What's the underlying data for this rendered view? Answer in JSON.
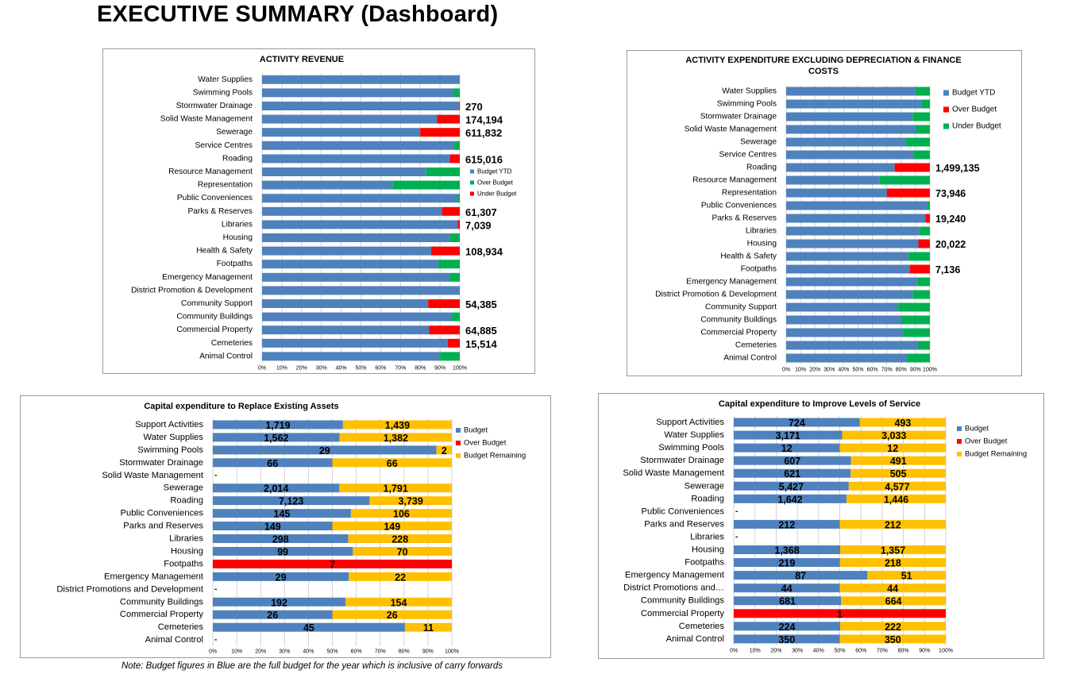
{
  "page": {
    "title": "EXECUTIVE SUMMARY (Dashboard)",
    "note": "Note: Budget figures in Blue are the full budget for the year which is inclusive of carry forwards"
  },
  "colors": {
    "blue": "#4f81bd",
    "green": "#00b050",
    "red": "#ff0000",
    "yellow": "#ffc000",
    "grid": "#c8c8c8"
  },
  "chart_data": [
    {
      "id": "activity-revenue",
      "type": "bar",
      "stacked": "percent",
      "orientation": "horizontal",
      "title": "ACTIVITY REVENUE",
      "legend": [
        "Budget YTD",
        "Over Budget",
        "Under Budget"
      ],
      "legend_position": "right",
      "xlim": [
        0,
        100
      ],
      "x_ticks": [
        "0%",
        "10%",
        "20%",
        "30%",
        "40%",
        "50%",
        "60%",
        "70%",
        "80%",
        "90%",
        "100%"
      ],
      "grid": true,
      "categories": [
        "Water Supplies",
        "Swimming Pools",
        "Stormwater Drainage",
        "Solid Waste Management",
        "Sewerage",
        "Service Centres",
        "Roading",
        "Resource Management",
        "Representation",
        "Public Conveniences",
        "Parks & Reserves",
        "Libraries",
        "Housing",
        "Health & Safety",
        "Footpaths",
        "Emergency Management",
        "District Promotion & Development",
        "Community Support",
        "Community Buildings",
        "Commercial Property",
        "Cemeteries",
        "Animal Control"
      ],
      "series": [
        {
          "name": "Budget YTD",
          "color": "blue",
          "values": [
            100,
            97,
            99.5,
            88.5,
            80,
            97.2,
            95,
            83,
            66,
            99,
            91,
            99,
            95,
            85.5,
            89,
            95,
            100,
            84,
            96,
            84.5,
            94,
            90
          ]
        },
        {
          "name": "Over Budget",
          "color": "green",
          "values": [
            0,
            3,
            0,
            0,
            0,
            2.8,
            0,
            17,
            34,
            1,
            0,
            0,
            5,
            0,
            11,
            5,
            0,
            0,
            4,
            0,
            0,
            10
          ]
        },
        {
          "name": "Under Budget",
          "color": "red",
          "values": [
            0,
            0,
            0.5,
            11.5,
            20,
            0,
            5,
            0,
            0,
            0,
            9,
            1,
            0,
            14.5,
            0,
            0,
            0,
            16,
            0,
            15.5,
            6,
            0
          ]
        }
      ],
      "value_labels": [
        "",
        "",
        "270",
        "174,194",
        "611,832",
        "",
        "615,016",
        "",
        "",
        "",
        "61,307",
        "7,039",
        "",
        "108,934",
        "",
        "",
        "",
        "54,385",
        "",
        "64,885",
        "15,514",
        ""
      ]
    },
    {
      "id": "activity-expenditure",
      "type": "bar",
      "stacked": "percent",
      "orientation": "horizontal",
      "title": "ACTIVITY EXPENDITURE EXCLUDING DEPRECIATION & FINANCE COSTS",
      "legend": [
        "Budget YTD",
        "Over Budget",
        "Under Budget"
      ],
      "legend_position": "right",
      "xlim": [
        0,
        100
      ],
      "x_ticks": [
        "0%",
        "10%",
        "20%",
        "30%",
        "40%",
        "50%",
        "60%",
        "70%",
        "80%",
        "90%",
        "100%"
      ],
      "grid": true,
      "categories": [
        "Water Supplies",
        "Swimming Pools",
        "Stormwater Drainage",
        "Solid Waste Management",
        "Sewerage",
        "Service Centres",
        "Roading",
        "Resource Management",
        "Representation",
        "Public Conveniences",
        "Parks & Reserves",
        "Libraries",
        "Housing",
        "Health & Safety",
        "Footpaths",
        "Emergency Management",
        "District Promotion & Development",
        "Community Support",
        "Community Buildings",
        "Commercial Property",
        "Cemeteries",
        "Animal Control"
      ],
      "series": [
        {
          "name": "Budget YTD",
          "color": "blue",
          "values": [
            90,
            94,
            88,
            90,
            83,
            89,
            75.5,
            65,
            70,
            98,
            97,
            93,
            92,
            85,
            86,
            91,
            88,
            78,
            80,
            81,
            92,
            84
          ]
        },
        {
          "name": "Over Budget",
          "color": "red",
          "values": [
            0,
            0,
            0,
            0,
            0,
            0,
            24.5,
            0,
            30,
            0,
            3,
            0,
            8,
            0,
            14,
            0,
            0,
            0,
            0,
            0,
            0,
            0
          ]
        },
        {
          "name": "Under Budget",
          "color": "green",
          "values": [
            10,
            6,
            12,
            10,
            17,
            11,
            0,
            35,
            0,
            2,
            0,
            7,
            0,
            15,
            0,
            9,
            12,
            22,
            20,
            19,
            8,
            16
          ]
        }
      ],
      "value_labels": [
        "",
        "",
        "",
        "",
        "",
        "",
        "1,499,135",
        "",
        "73,946",
        "",
        "19,240",
        "",
        "20,022",
        "",
        "7,136",
        "",
        "",
        "",
        "",
        "",
        "",
        ""
      ]
    },
    {
      "id": "capex-replace",
      "type": "bar",
      "stacked": "percent",
      "orientation": "horizontal",
      "title": "Capital expenditure to Replace Existing Assets",
      "legend": [
        "Budget",
        "Over Budget",
        "Budget Remaining"
      ],
      "legend_position": "right",
      "xlim": [
        0,
        100
      ],
      "x_ticks": [
        "0%",
        "10%",
        "20%",
        "30%",
        "40%",
        "50%",
        "60%",
        "70%",
        "80%",
        "90%",
        "100%"
      ],
      "grid": true,
      "categories": [
        "Support Activities",
        "Water Supplies",
        "Swimming Pools",
        "Stormwater Drainage",
        "Solid Waste Management",
        "Sewerage",
        "Roading",
        "Public Conveniences",
        "Parks and Reserves",
        "Libraries",
        "Housing",
        "Footpaths",
        "Emergency Management",
        "District Promotions and Development",
        "Community Buildings",
        "Commercial Property",
        "Cemeteries",
        "Animal Control"
      ],
      "series": [
        {
          "name": "Budget",
          "color": "blue",
          "values": [
            1719,
            1562,
            29,
            66,
            0,
            2014,
            7123,
            145,
            149,
            298,
            99,
            0,
            29,
            0,
            192,
            26,
            45,
            0
          ]
        },
        {
          "name": "Over Budget",
          "color": "red",
          "values": [
            0,
            0,
            0,
            0,
            0,
            0,
            0,
            0,
            0,
            0,
            0,
            7,
            0,
            0,
            0,
            0,
            0,
            0
          ]
        },
        {
          "name": "Budget Remaining",
          "color": "yellow",
          "values": [
            1439,
            1382,
            2,
            66,
            0,
            1791,
            3739,
            106,
            149,
            228,
            70,
            0,
            22,
            0,
            154,
            26,
            11,
            0
          ]
        }
      ],
      "value_labels": [
        [
          "1,719",
          "",
          "1,439"
        ],
        [
          "1,562",
          "",
          "1,382"
        ],
        [
          "29",
          "",
          "2"
        ],
        [
          "66",
          "",
          "66"
        ],
        [
          "",
          "",
          ""
        ],
        [
          "2,014",
          "",
          "1,791"
        ],
        [
          "7,123",
          "",
          "3,739"
        ],
        [
          "145",
          "",
          "106"
        ],
        [
          "149",
          "",
          "149"
        ],
        [
          "298",
          "",
          "228"
        ],
        [
          "99",
          "",
          "70"
        ],
        [
          "",
          "7",
          ""
        ],
        [
          "29",
          "",
          "22"
        ],
        [
          "",
          "",
          ""
        ],
        [
          "192",
          "",
          "154"
        ],
        [
          "26",
          "",
          "26"
        ],
        [
          "45",
          "",
          "11"
        ],
        [
          "",
          "",
          ""
        ]
      ],
      "empty_marker": "-"
    },
    {
      "id": "capex-improve",
      "type": "bar",
      "stacked": "percent",
      "orientation": "horizontal",
      "title": "Capital expenditure  to Improve Levels of Service",
      "legend": [
        "Budget",
        "Over Budget",
        "Budget Remaining"
      ],
      "legend_position": "right",
      "xlim": [
        0,
        100
      ],
      "x_ticks": [
        "0%",
        "10%",
        "20%",
        "30%",
        "40%",
        "50%",
        "60%",
        "70%",
        "80%",
        "90%",
        "100%"
      ],
      "grid": true,
      "categories": [
        "Support Activities",
        "Water Supplies",
        "Swimming Pools",
        "Stormwater Drainage",
        "Solid Waste Management",
        "Sewerage",
        "Roading",
        "Public Conveniences",
        "Parks and Reserves",
        "Libraries",
        "Housing",
        "Footpaths",
        "Emergency Management",
        "District Promotions and…",
        "Community Buildings",
        "Commercial Property",
        "Cemeteries",
        "Animal Control"
      ],
      "series": [
        {
          "name": "Budget",
          "color": "blue",
          "values": [
            724,
            3171,
            12,
            607,
            621,
            5427,
            1642,
            0,
            212,
            0,
            1368,
            219,
            87,
            44,
            681,
            0,
            224,
            350
          ]
        },
        {
          "name": "Over Budget",
          "color": "red",
          "values": [
            0,
            0,
            0,
            0,
            0,
            0,
            0,
            0,
            0,
            0,
            0,
            0,
            0,
            0,
            0,
            1,
            0,
            0
          ]
        },
        {
          "name": "Budget Remaining",
          "color": "yellow",
          "values": [
            493,
            3033,
            12,
            491,
            505,
            4577,
            1446,
            0,
            212,
            0,
            1357,
            218,
            51,
            44,
            664,
            0,
            222,
            350
          ]
        }
      ],
      "value_labels": [
        [
          "724",
          "",
          "493"
        ],
        [
          "3,171",
          "",
          "3,033"
        ],
        [
          "12",
          "",
          "12"
        ],
        [
          "607",
          "",
          "491"
        ],
        [
          "621",
          "",
          "505"
        ],
        [
          "5,427",
          "",
          "4,577"
        ],
        [
          "1,642",
          "",
          "1,446"
        ],
        [
          "",
          "",
          ""
        ],
        [
          "212",
          "",
          "212"
        ],
        [
          "",
          "",
          ""
        ],
        [
          "1,368",
          "",
          "1,357"
        ],
        [
          "219",
          "",
          "218"
        ],
        [
          "87",
          "",
          "51"
        ],
        [
          "44",
          "",
          "44"
        ],
        [
          "681",
          "",
          "664"
        ],
        [
          "",
          "1",
          ""
        ],
        [
          "224",
          "",
          "222"
        ],
        [
          "350",
          "",
          "350"
        ]
      ],
      "empty_marker": "-"
    }
  ]
}
